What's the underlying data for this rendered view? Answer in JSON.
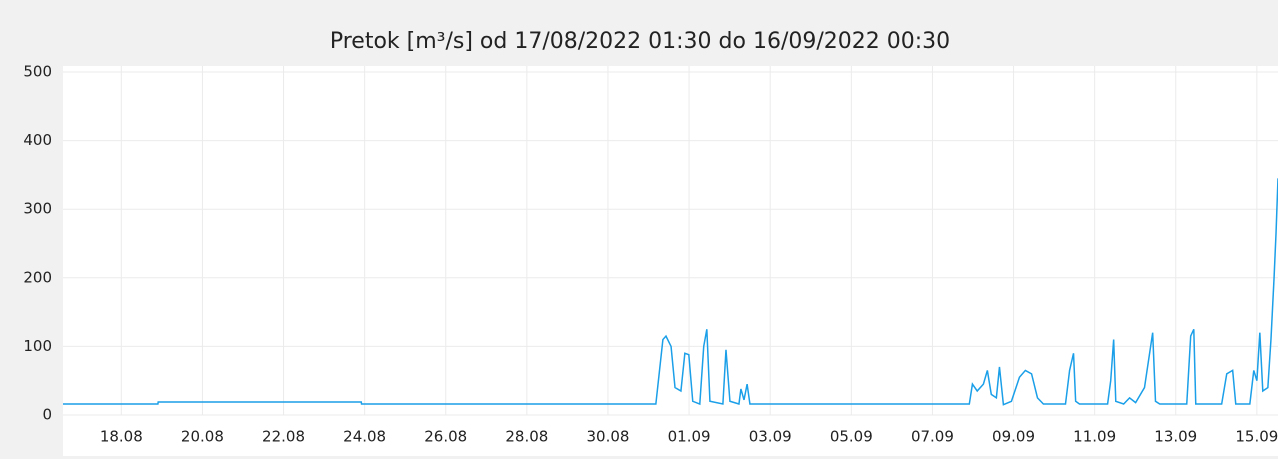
{
  "chart_data": {
    "type": "line",
    "title": "Pretok [m³/s] od 17/08/2022 01:30 do 16/09/2022 00:30",
    "xlim": [
      "2022-08-17T01:30",
      "2022-09-16T00:30"
    ],
    "ylim": [
      0,
      500
    ],
    "yticks": [
      0,
      100,
      200,
      300,
      400,
      500
    ],
    "xticks": [
      {
        "value": "2022-08-18T12:00",
        "label": "18.08"
      },
      {
        "value": "2022-08-20T12:00",
        "label": "20.08"
      },
      {
        "value": "2022-08-22T12:00",
        "label": "22.08"
      },
      {
        "value": "2022-08-24T12:00",
        "label": "24.08"
      },
      {
        "value": "2022-08-26T12:00",
        "label": "26.08"
      },
      {
        "value": "2022-08-28T12:00",
        "label": "28.08"
      },
      {
        "value": "2022-08-30T12:00",
        "label": "30.08"
      },
      {
        "value": "2022-09-01T12:00",
        "label": "01.09"
      },
      {
        "value": "2022-09-03T12:00",
        "label": "03.09"
      },
      {
        "value": "2022-09-05T12:00",
        "label": "05.09"
      },
      {
        "value": "2022-09-07T12:00",
        "label": "07.09"
      },
      {
        "value": "2022-09-09T12:00",
        "label": "09.09"
      },
      {
        "value": "2022-09-11T12:00",
        "label": "11.09"
      },
      {
        "value": "2022-09-13T12:00",
        "label": "13.09"
      },
      {
        "value": "2022-09-15T12:00",
        "label": "15.09"
      }
    ],
    "grid": true,
    "x": [
      "2022-08-17T01:30",
      "2022-08-19T09:40",
      "2022-08-19T09:50",
      "2022-08-24T10:00",
      "2022-08-24T10:10",
      "2022-08-31T16:20",
      "2022-08-31T20:30",
      "2022-08-31T22:20",
      "2022-09-01T01:20",
      "2022-09-01T03:40",
      "2022-09-01T07:10",
      "2022-09-01T09:30",
      "2022-09-01T11:50",
      "2022-09-01T14:10",
      "2022-09-01T18:20",
      "2022-09-01T20:40",
      "2022-09-01T22:30",
      "2022-09-02T00:20",
      "2022-09-02T08:00",
      "2022-09-02T09:50",
      "2022-09-02T12:10",
      "2022-09-02T17:30",
      "2022-09-02T18:40",
      "2022-09-02T20:30",
      "2022-09-02T22:20",
      "2022-09-03T00:00",
      "2022-09-08T09:50",
      "2022-09-08T11:40",
      "2022-09-08T14:30",
      "2022-09-08T18:10",
      "2022-09-08T20:30",
      "2022-09-08T22:50",
      "2022-09-09T01:50",
      "2022-09-09T03:40",
      "2022-09-09T06:00",
      "2022-09-09T10:45",
      "2022-09-09T15:30",
      "2022-09-09T19:00",
      "2022-09-09T22:40",
      "2022-09-10T02:10",
      "2022-09-10T05:40",
      "2022-09-10T18:45",
      "2022-09-10T21:10",
      "2022-09-10T23:30",
      "2022-09-11T00:45",
      "2022-09-11T03:00",
      "2022-09-11T19:40",
      "2022-09-11T21:30",
      "2022-09-11T23:15",
      "2022-09-12T00:30",
      "2022-09-12T05:10",
      "2022-09-12T08:40",
      "2022-09-12T12:15",
      "2022-09-12T17:30",
      "2022-09-12T22:20",
      "2022-09-13T00:00",
      "2022-09-13T02:30",
      "2022-09-13T18:30",
      "2022-09-13T20:50",
      "2022-09-13T22:40",
      "2022-09-13T23:50",
      "2022-09-14T15:10",
      "2022-09-14T18:10",
      "2022-09-14T21:40",
      "2022-09-14T23:30",
      "2022-09-15T07:50",
      "2022-09-15T10:10",
      "2022-09-15T12:00",
      "2022-09-15T13:45",
      "2022-09-15T15:30",
      "2022-09-15T18:30",
      "2022-09-15T20:20",
      "2022-09-15T22:10",
      "2022-09-15T23:20",
      "2022-09-16T00:30"
    ],
    "series": [
      {
        "color": "#1a9fe8",
        "values": [
          16,
          16,
          19,
          19,
          16,
          16,
          110,
          115,
          100,
          40,
          35,
          90,
          88,
          20,
          16,
          100,
          125,
          20,
          16,
          95,
          20,
          16,
          38,
          22,
          45,
          16,
          16,
          45,
          35,
          45,
          65,
          30,
          25,
          70,
          15,
          20,
          55,
          65,
          60,
          25,
          16,
          16,
          65,
          90,
          20,
          16,
          16,
          50,
          110,
          20,
          16,
          25,
          18,
          40,
          120,
          20,
          16,
          16,
          115,
          125,
          16,
          16,
          60,
          65,
          16,
          16,
          65,
          50,
          120,
          35,
          40,
          110,
          200,
          265,
          345
        ]
      }
    ]
  }
}
